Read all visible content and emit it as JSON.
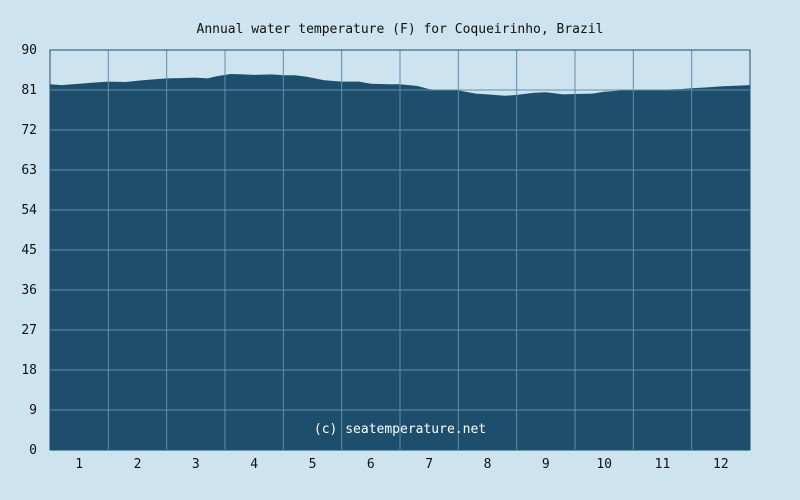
{
  "chart_data": {
    "type": "area",
    "title": "Annual water temperature (F) for Coqueirinho, Brazil",
    "annotation": "(c) seatemperature.net",
    "xlabel": "",
    "ylabel": "",
    "ylim": [
      0,
      90
    ],
    "yticks": [
      0,
      9,
      18,
      27,
      36,
      45,
      54,
      63,
      72,
      81,
      90
    ],
    "xlim": [
      0.5,
      12.5
    ],
    "xticks": [
      1,
      2,
      3,
      4,
      5,
      6,
      7,
      8,
      9,
      10,
      11,
      12
    ],
    "grid": true,
    "legend": "none",
    "x": [
      0.5,
      0.7,
      1.0,
      1.3,
      1.5,
      1.8,
      2.0,
      2.3,
      2.5,
      2.8,
      3.0,
      3.2,
      3.4,
      3.6,
      3.8,
      4.0,
      4.3,
      4.5,
      4.7,
      4.9,
      5.2,
      5.5,
      5.8,
      6.0,
      6.3,
      6.5,
      6.8,
      7.0,
      7.3,
      7.5,
      7.8,
      8.0,
      8.3,
      8.5,
      8.8,
      9.0,
      9.3,
      9.5,
      9.8,
      10.0,
      10.3,
      10.5,
      10.8,
      11.0,
      11.3,
      11.5,
      11.8,
      12.0,
      12.3,
      12.5
    ],
    "y": [
      82.3,
      82.1,
      82.4,
      82.7,
      82.9,
      82.8,
      83.1,
      83.4,
      83.6,
      83.7,
      83.8,
      83.6,
      84.2,
      84.6,
      84.5,
      84.4,
      84.5,
      84.3,
      84.3,
      84.0,
      83.2,
      82.9,
      82.9,
      82.4,
      82.3,
      82.3,
      81.9,
      81.2,
      80.9,
      80.9,
      80.2,
      80.0,
      79.7,
      79.9,
      80.4,
      80.5,
      80.0,
      80.1,
      80.2,
      80.6,
      80.9,
      81.0,
      81.0,
      81.1,
      81.2,
      81.4,
      81.6,
      81.8,
      82.0,
      82.1
    ],
    "colors": {
      "background": "#cde3ef",
      "plot_area": "#cde3ef",
      "fill": "#1d4f6c",
      "grid": "#5f8fa8",
      "axis": "#1d4f6c",
      "text": "#111111",
      "annotation_text": "#ffffff"
    }
  }
}
